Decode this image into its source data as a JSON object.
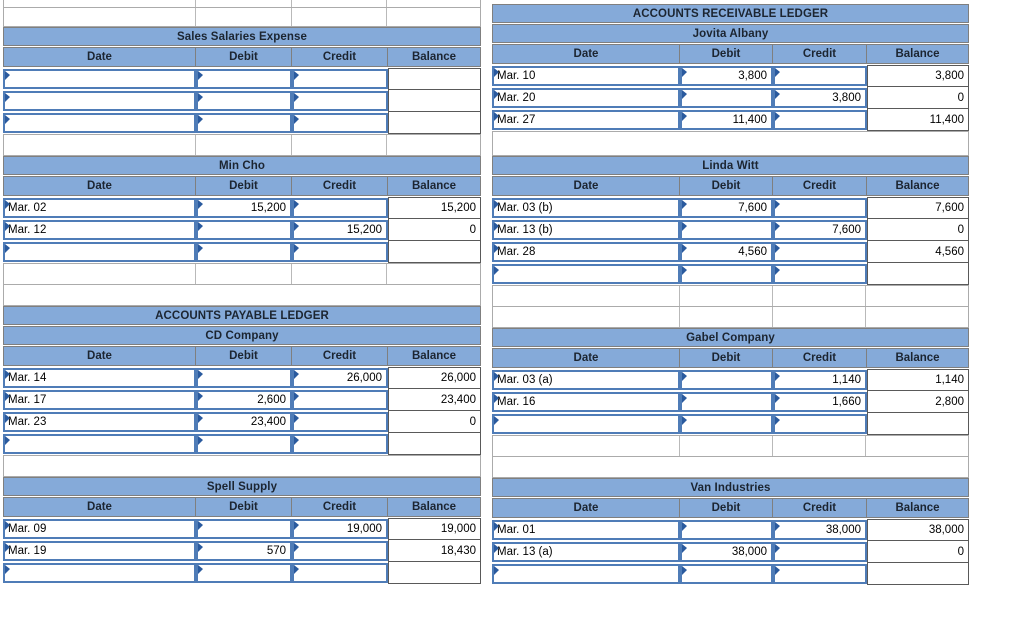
{
  "colors": {
    "band_fill": "#85AAD9",
    "input_cell_border": "#4F7CB7",
    "flag_marker": "#2A5A9E"
  },
  "columns": {
    "date": "Date",
    "debit": "Debit",
    "credit": "Credit",
    "balance": "Balance"
  },
  "left": {
    "tables": [
      {
        "title": "Sales Salaries Expense",
        "rows": [
          {
            "date": "",
            "debit": "",
            "credit": "",
            "balance": ""
          },
          {
            "date": "",
            "debit": "",
            "credit": "",
            "balance": ""
          },
          {
            "date": "",
            "debit": "",
            "credit": "",
            "balance": ""
          }
        ]
      },
      {
        "title": "Min Cho",
        "rows": [
          {
            "date": "Mar. 02",
            "debit": "15,200",
            "credit": "",
            "balance": "15,200"
          },
          {
            "date": "Mar. 12",
            "debit": "",
            "credit": "15,200",
            "balance": "0"
          },
          {
            "date": "",
            "debit": "",
            "credit": "",
            "balance": ""
          }
        ]
      },
      {
        "ledger_header": "ACCOUNTS PAYABLE LEDGER",
        "title": "CD Company",
        "rows": [
          {
            "date": "Mar. 14",
            "debit": "",
            "credit": "26,000",
            "balance": "26,000"
          },
          {
            "date": "Mar. 17",
            "debit": "2,600",
            "credit": "",
            "balance": "23,400"
          },
          {
            "date": "Mar. 23",
            "debit": "23,400",
            "credit": "",
            "balance": "0"
          },
          {
            "date": "",
            "debit": "",
            "credit": "",
            "balance": ""
          }
        ]
      },
      {
        "title": "Spell Supply",
        "rows": [
          {
            "date": "Mar. 09",
            "debit": "",
            "credit": "19,000",
            "balance": "19,000"
          },
          {
            "date": "Mar. 19",
            "debit": "570",
            "credit": "",
            "balance": "18,430"
          },
          {
            "date": "",
            "debit": "",
            "credit": "",
            "balance": ""
          }
        ]
      }
    ]
  },
  "right": {
    "tables": [
      {
        "ledger_header": "ACCOUNTS RECEIVABLE LEDGER",
        "title": "Jovita Albany",
        "rows": [
          {
            "date": "Mar. 10",
            "debit": "3,800",
            "credit": "",
            "balance": "3,800"
          },
          {
            "date": "Mar. 20",
            "debit": "",
            "credit": "3,800",
            "balance": "0"
          },
          {
            "date": "Mar. 27",
            "debit": "11,400",
            "credit": "",
            "balance": "11,400"
          }
        ]
      },
      {
        "title": "Linda Witt",
        "rows": [
          {
            "date": "Mar. 03 (b)",
            "debit": "7,600",
            "credit": "",
            "balance": "7,600"
          },
          {
            "date": "Mar. 13 (b)",
            "debit": "",
            "credit": "7,600",
            "balance": "0"
          },
          {
            "date": "Mar. 28",
            "debit": "4,560",
            "credit": "",
            "balance": "4,560"
          },
          {
            "date": "",
            "debit": "",
            "credit": "",
            "balance": ""
          }
        ]
      },
      {
        "title": "Gabel Company",
        "rows": [
          {
            "date": "Mar. 03 (a)",
            "debit": "",
            "credit": "1,140",
            "balance": "1,140"
          },
          {
            "date": "Mar. 16",
            "debit": "",
            "credit": "1,660",
            "balance": "2,800"
          },
          {
            "date": "",
            "debit": "",
            "credit": "",
            "balance": ""
          }
        ]
      },
      {
        "title": "Van Industries",
        "rows": [
          {
            "date": "Mar. 01",
            "debit": "",
            "credit": "38,000",
            "balance": "38,000"
          },
          {
            "date": "Mar. 13 (a)",
            "debit": "38,000",
            "credit": "",
            "balance": "0"
          },
          {
            "date": "",
            "debit": "",
            "credit": "",
            "balance": ""
          }
        ]
      }
    ]
  }
}
